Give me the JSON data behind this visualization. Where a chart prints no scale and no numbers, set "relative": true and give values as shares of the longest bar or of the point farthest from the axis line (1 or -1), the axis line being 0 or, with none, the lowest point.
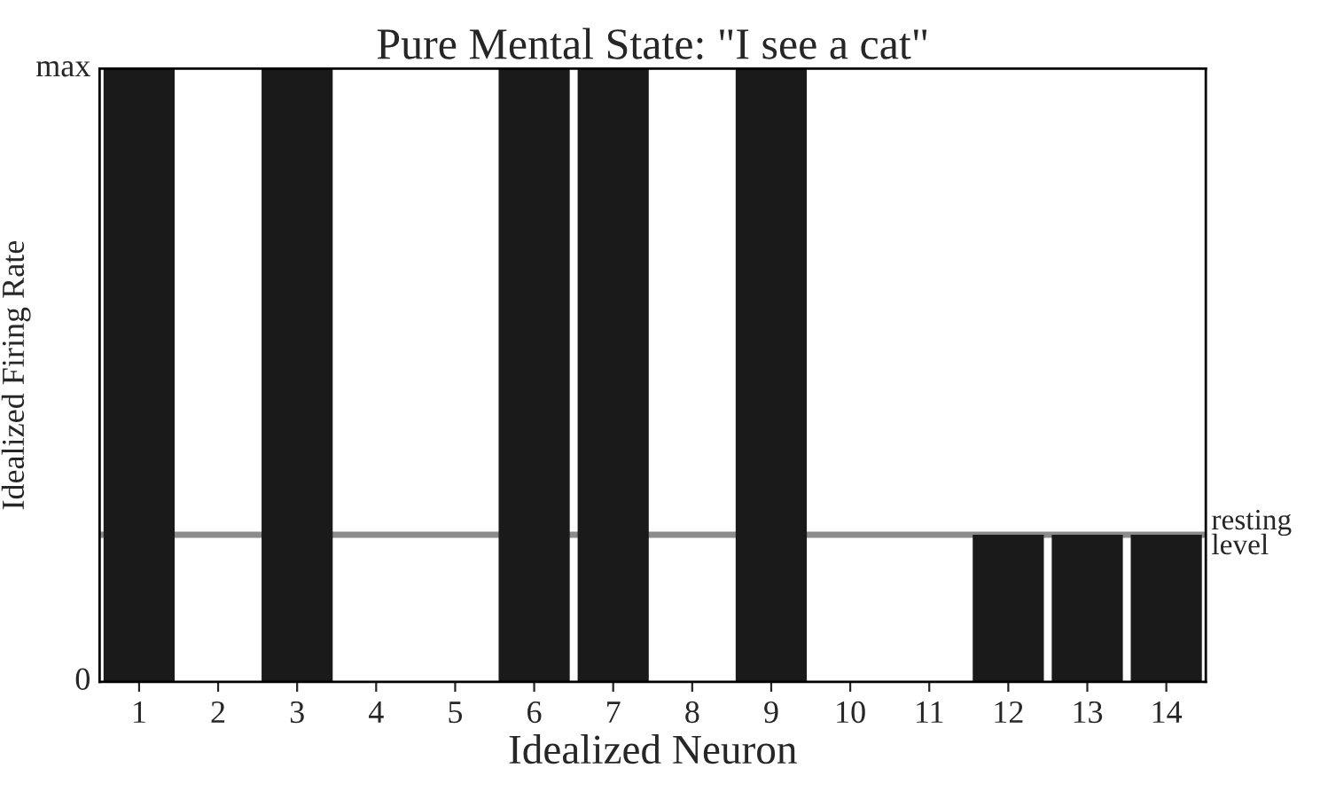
{
  "chart_data": {
    "type": "bar",
    "title": "Pure Mental State: \"I see a cat\"",
    "xlabel": "Idealized Neuron",
    "ylabel": "Idealized Firing Rate",
    "categories": [
      "1",
      "2",
      "3",
      "4",
      "5",
      "6",
      "7",
      "8",
      "9",
      "10",
      "11",
      "12",
      "13",
      "14"
    ],
    "values": [
      1,
      0,
      1,
      0,
      0,
      1,
      1,
      0,
      1,
      0,
      0,
      0.24,
      0.24,
      0.24
    ],
    "color": "#1a1a1a",
    "relative": true,
    "annotations": [
      "0",
      "max"
    ],
    "ref_lines": [
      {
        "axis": "y",
        "value": 0.24,
        "label": "resting\nlevel",
        "color": "#8c8c8c"
      }
    ],
    "grid": false,
    "legend": false
  }
}
